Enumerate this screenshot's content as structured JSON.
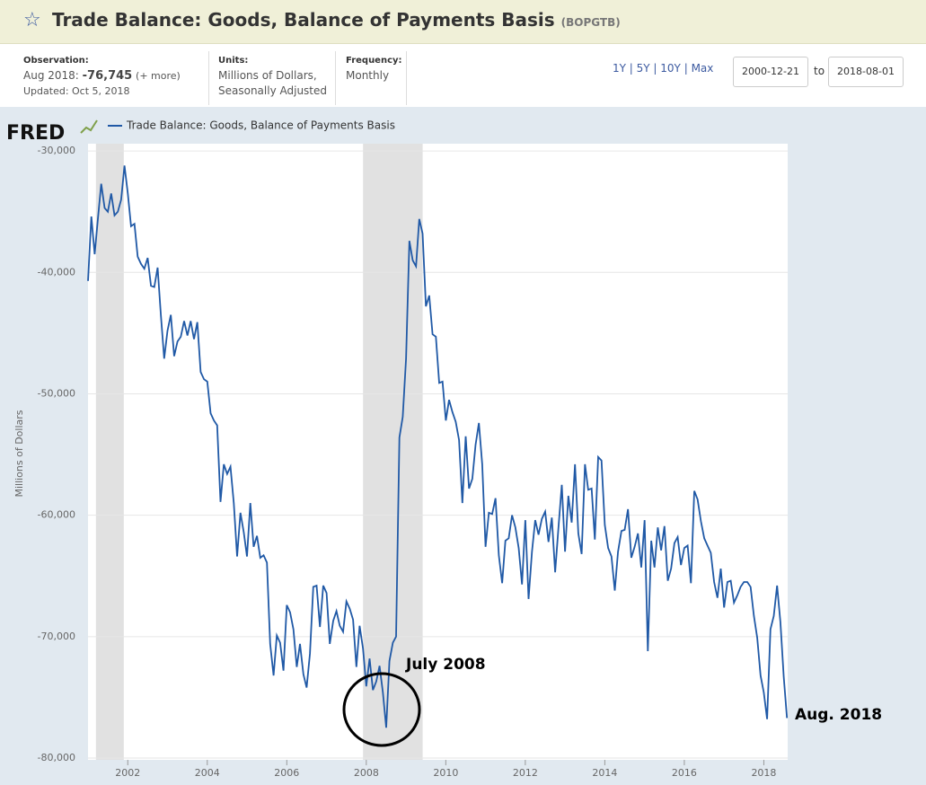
{
  "header": {
    "title": "Trade Balance: Goods, Balance of Payments Basis",
    "code": "(BOPGTB)",
    "observation_label": "Observation:",
    "observation_date": "Aug 2018:",
    "observation_value": "-76,745",
    "more": "(+ more)",
    "updated": "Updated: Oct 5, 2018",
    "units_label": "Units:",
    "units_line1": "Millions of Dollars,",
    "units_line2": "Seasonally Adjusted",
    "frequency_label": "Frequency:",
    "frequency": "Monthly",
    "ranges": [
      "1Y",
      "5Y",
      "10Y",
      "Max"
    ],
    "date_from": "2000-12-21",
    "to": "to",
    "date_to": "2018-08-01"
  },
  "logo": "FRED",
  "chart_data": {
    "type": "line",
    "y_label": "Millions of Dollars",
    "x": [
      2001,
      2001.083,
      2001.167,
      2001.25,
      2001.333,
      2001.417,
      2001.5,
      2001.583,
      2001.667,
      2001.75,
      2001.833,
      2001.917,
      2002,
      2002.083,
      2002.167,
      2002.25,
      2002.333,
      2002.417,
      2002.5,
      2002.583,
      2002.667,
      2002.75,
      2002.833,
      2002.917,
      2003,
      2003.083,
      2003.167,
      2003.25,
      2003.333,
      2003.417,
      2003.5,
      2003.583,
      2003.667,
      2003.75,
      2003.833,
      2003.917,
      2004,
      2004.083,
      2004.167,
      2004.25,
      2004.333,
      2004.417,
      2004.5,
      2004.583,
      2004.667,
      2004.75,
      2004.833,
      2004.917,
      2005,
      2005.083,
      2005.167,
      2005.25,
      2005.333,
      2005.417,
      2005.5,
      2005.583,
      2005.667,
      2005.75,
      2005.833,
      2005.917,
      2006,
      2006.083,
      2006.167,
      2006.25,
      2006.333,
      2006.417,
      2006.5,
      2006.583,
      2006.667,
      2006.75,
      2006.833,
      2006.917,
      2007,
      2007.083,
      2007.167,
      2007.25,
      2007.333,
      2007.417,
      2007.5,
      2007.583,
      2007.667,
      2007.75,
      2007.833,
      2007.917,
      2008,
      2008.083,
      2008.167,
      2008.25,
      2008.333,
      2008.417,
      2008.5,
      2008.583,
      2008.667,
      2008.75,
      2008.833,
      2008.917,
      2009,
      2009.083,
      2009.167,
      2009.25,
      2009.333,
      2009.417,
      2009.5,
      2009.583,
      2009.667,
      2009.75,
      2009.833,
      2009.917,
      2010,
      2010.083,
      2010.167,
      2010.25,
      2010.333,
      2010.417,
      2010.5,
      2010.583,
      2010.667,
      2010.75,
      2010.833,
      2010.917,
      2011,
      2011.083,
      2011.167,
      2011.25,
      2011.333,
      2011.417,
      2011.5,
      2011.583,
      2011.667,
      2011.75,
      2011.833,
      2011.917,
      2012,
      2012.083,
      2012.167,
      2012.25,
      2012.333,
      2012.417,
      2012.5,
      2012.583,
      2012.667,
      2012.75,
      2012.833,
      2012.917,
      2013,
      2013.083,
      2013.167,
      2013.25,
      2013.333,
      2013.417,
      2013.5,
      2013.583,
      2013.667,
      2013.75,
      2013.833,
      2013.917,
      2014,
      2014.083,
      2014.167,
      2014.25,
      2014.333,
      2014.417,
      2014.5,
      2014.583,
      2014.667,
      2014.75,
      2014.833,
      2014.917,
      2015,
      2015.083,
      2015.167,
      2015.25,
      2015.333,
      2015.417,
      2015.5,
      2015.583,
      2015.667,
      2015.75,
      2015.833,
      2015.917,
      2016,
      2016.083,
      2016.167,
      2016.25,
      2016.333,
      2016.417,
      2016.5,
      2016.583,
      2016.667,
      2016.75,
      2016.833,
      2016.917,
      2017,
      2017.083,
      2017.167,
      2017.25,
      2017.333,
      2017.417,
      2017.5,
      2017.583,
      2017.667,
      2017.75,
      2017.833,
      2017.917,
      2018,
      2018.083,
      2018.167,
      2018.25,
      2018.333,
      2018.417,
      2018.5,
      2018.583
    ],
    "series": [
      {
        "name": "Trade Balance: Goods, Balance of Payments Basis",
        "color": "#2059a6",
        "values": [
          -40700,
          -35400,
          -38500,
          -35500,
          -32700,
          -34700,
          -35000,
          -33500,
          -35300,
          -35000,
          -34000,
          -31200,
          -33500,
          -36200,
          -36000,
          -38700,
          -39300,
          -39700,
          -38800,
          -41100,
          -41200,
          -39600,
          -43500,
          -47100,
          -44800,
          -43500,
          -46900,
          -45700,
          -45300,
          -44000,
          -45200,
          -44000,
          -45500,
          -44100,
          -48200,
          -48800,
          -49000,
          -51600,
          -52200,
          -52600,
          -58900,
          -55800,
          -56600,
          -56000,
          -59000,
          -63400,
          -59800,
          -61400,
          -63400,
          -59000,
          -62600,
          -61700,
          -63500,
          -63300,
          -63900,
          -70600,
          -73200,
          -69900,
          -70500,
          -72800,
          -67400,
          -68000,
          -69400,
          -72500,
          -70600,
          -73100,
          -74200,
          -71400,
          -65900,
          -65800,
          -69200,
          -65800,
          -66400,
          -70600,
          -68700,
          -67900,
          -69100,
          -69600,
          -67100,
          -67700,
          -68600,
          -72500,
          -69100,
          -71000,
          -74100,
          -71800,
          -74400,
          -73700,
          -72400,
          -74600,
          -77500,
          -72000,
          -70500,
          -70000,
          -53600,
          -51900,
          -47100,
          -37400,
          -39000,
          -39500,
          -35600,
          -36800,
          -42800,
          -41900,
          -45100,
          -45300,
          -49100,
          -49000,
          -52200,
          -50500,
          -51500,
          -52300,
          -53800,
          -59000,
          -53500,
          -57800,
          -57000,
          -54200,
          -52400,
          -55800,
          -62600,
          -59800,
          -59900,
          -58600,
          -63300,
          -65600,
          -62100,
          -61900,
          -60000,
          -61000,
          -62700,
          -65700,
          -60400,
          -66900,
          -63000,
          -60400,
          -61600,
          -60300,
          -59700,
          -62200,
          -60200,
          -64700,
          -61100,
          -57500,
          -63000,
          -58400,
          -60600,
          -55800,
          -61500,
          -63200,
          -55800,
          -57900,
          -57800,
          -62000,
          -55200,
          -55500,
          -60800,
          -62700,
          -63400,
          -66200,
          -63000,
          -61300,
          -61200,
          -59500,
          -63500,
          -62600,
          -61500,
          -64300,
          -60400,
          -71200,
          -62100,
          -64300,
          -61000,
          -62900,
          -60900,
          -65400,
          -64400,
          -62300,
          -61800,
          -64100,
          -62700,
          -62500,
          -65600,
          -58000,
          -58700,
          -60500,
          -61900,
          -62500,
          -63100,
          -65500,
          -66800,
          -64400,
          -67600,
          -65500,
          -65400,
          -67200,
          -66600,
          -65900,
          -65500,
          -65500,
          -65900,
          -68300,
          -70100,
          -73200,
          -74600,
          -76800,
          -69400,
          -68300,
          -65800,
          -68800,
          -73300,
          -76700
        ]
      }
    ],
    "xlim": [
      2001,
      2018.6
    ],
    "xticks": [
      2002,
      2004,
      2006,
      2008,
      2010,
      2012,
      2014,
      2016,
      2018
    ],
    "ylim": [
      -80000,
      -29400
    ],
    "yticks": [
      {
        "value": -30000,
        "label": "-30,000"
      },
      {
        "value": -40000,
        "label": "-40,000"
      },
      {
        "value": -50000,
        "label": "-50,000"
      },
      {
        "value": -60000,
        "label": "-60,000"
      },
      {
        "value": -70000,
        "label": "-70,000"
      },
      {
        "value": -80000,
        "label": "-80,000"
      }
    ],
    "grid": true,
    "recessions": [
      [
        2001.2,
        2001.9
      ],
      [
        2007.917,
        2009.417
      ]
    ],
    "annotations": [
      {
        "text": "July 2008",
        "x": 2008.5
      },
      {
        "text": "Aug. 2018",
        "x": 2018.583
      }
    ]
  }
}
